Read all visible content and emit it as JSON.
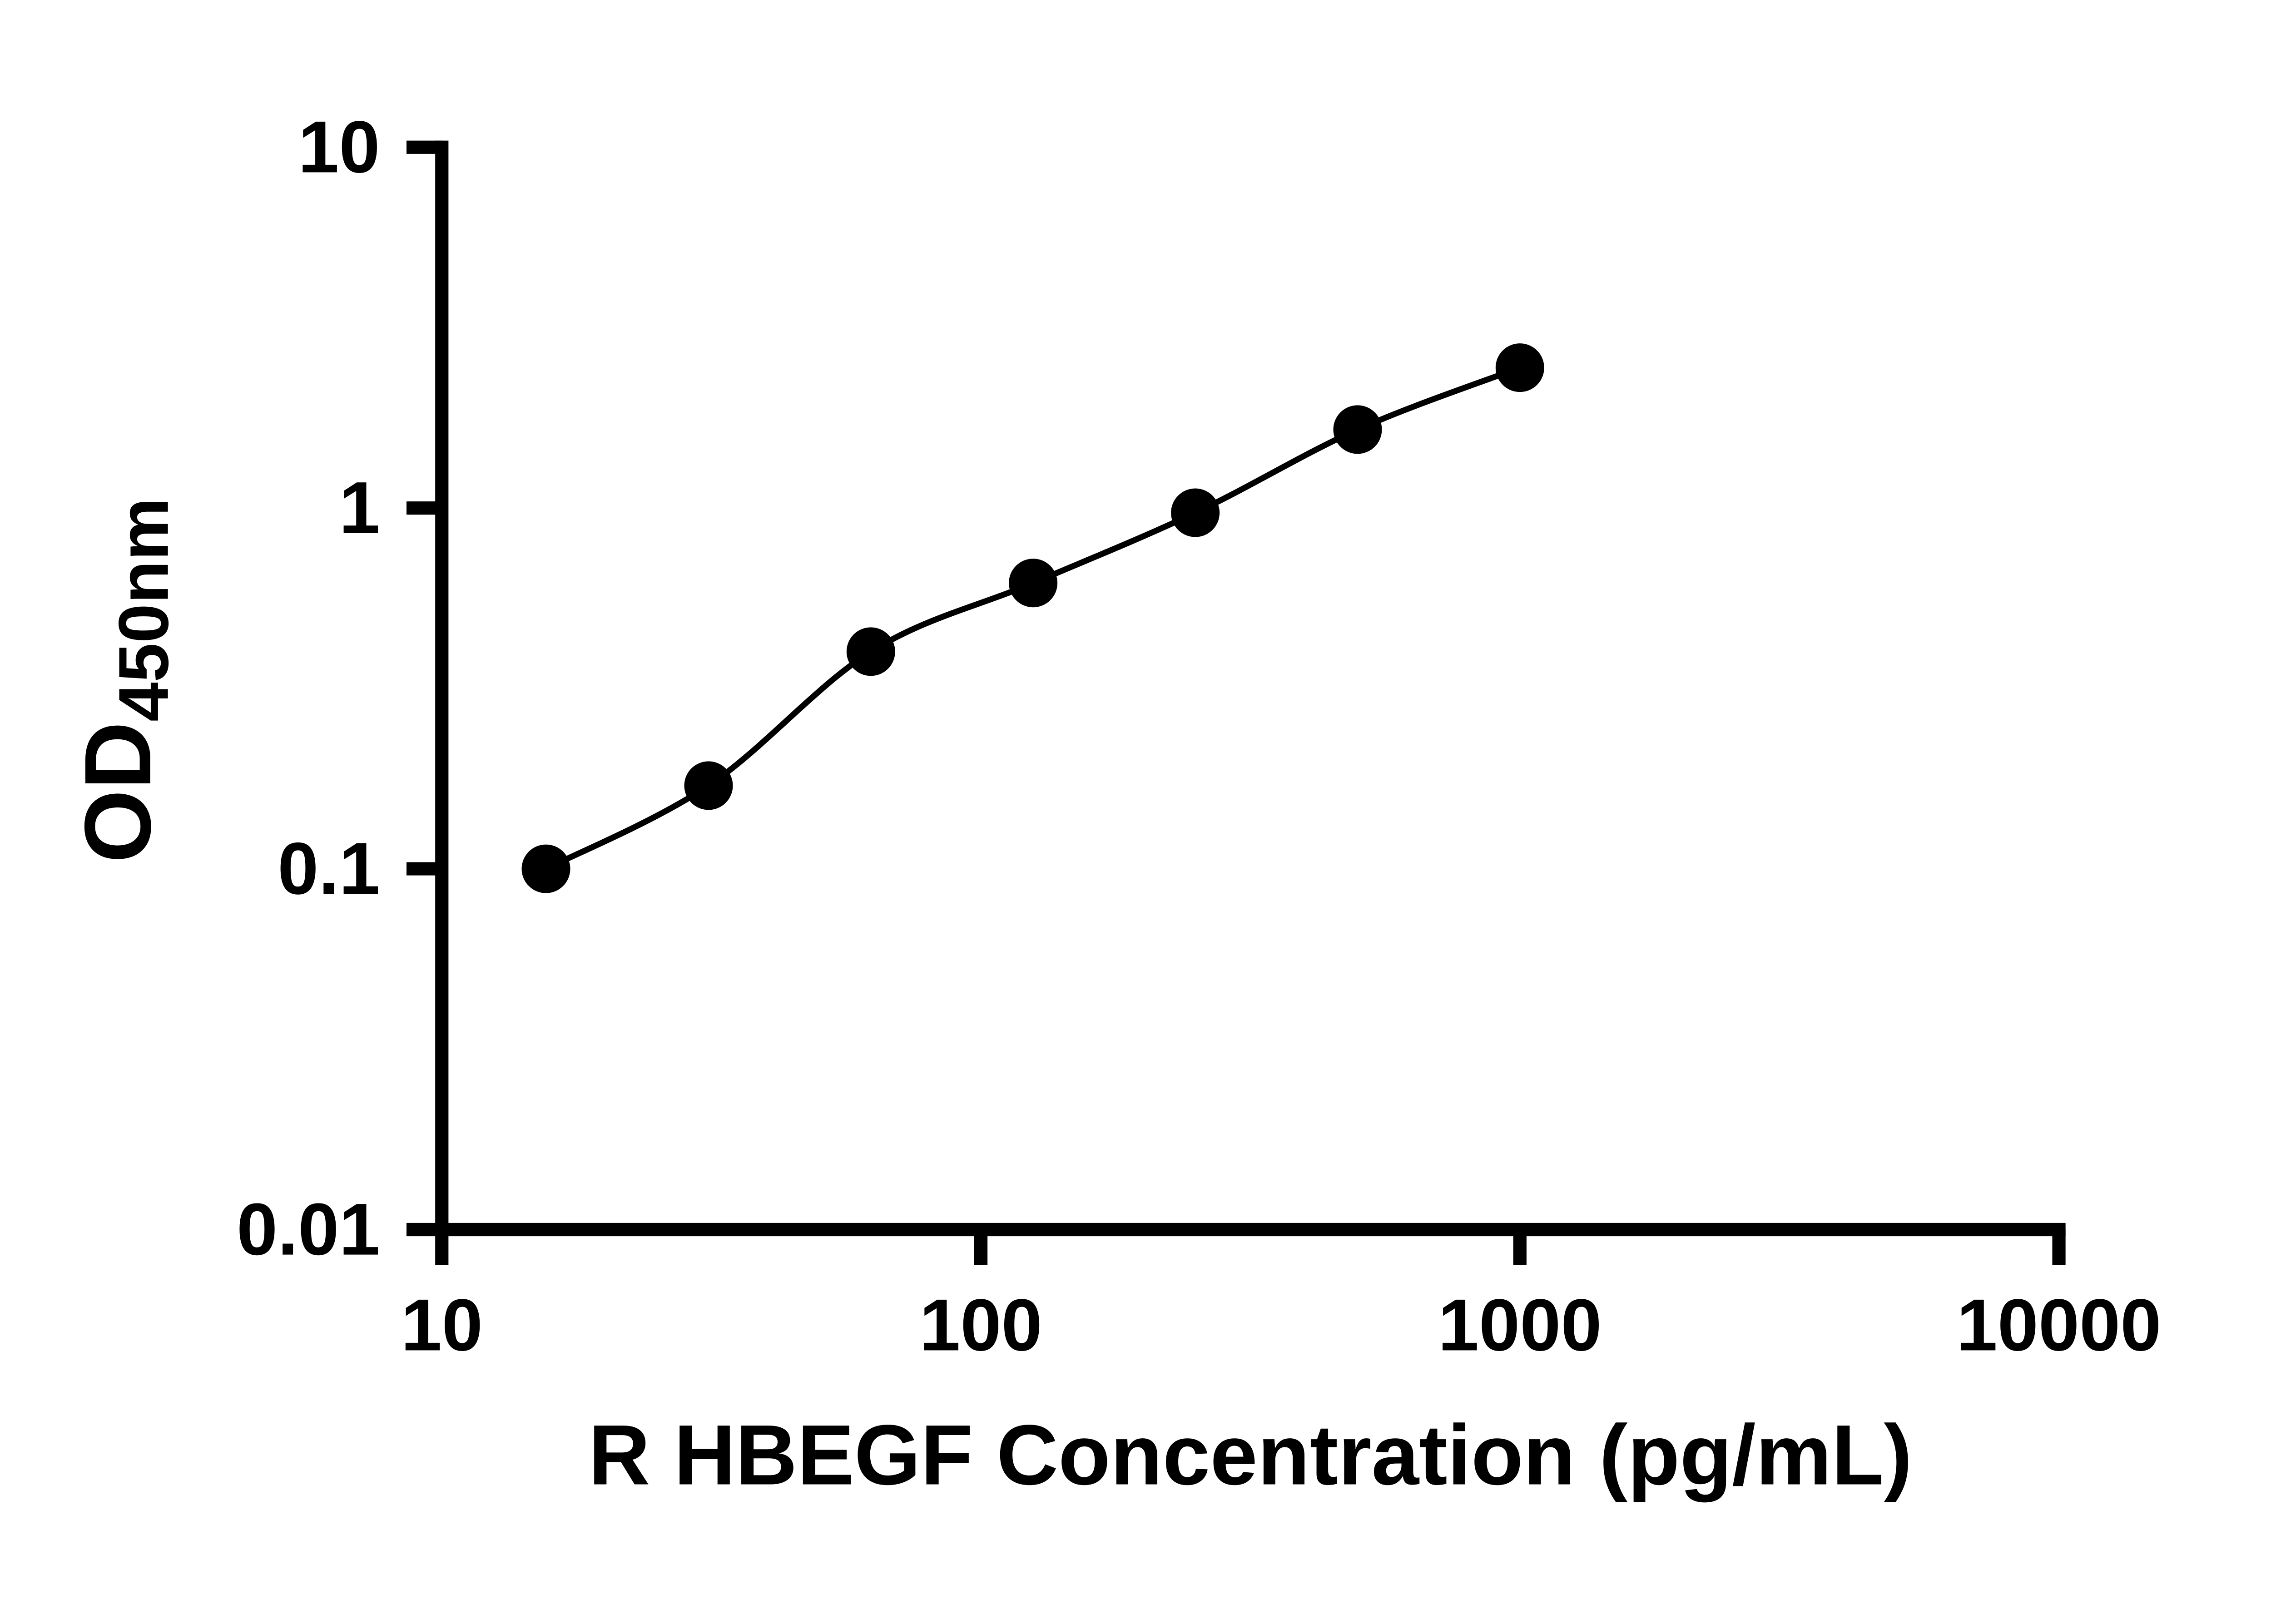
{
  "figure": {
    "background": "#ffffff"
  },
  "chart_data": {
    "type": "scatter",
    "title": "",
    "xlabel": "R HBEGF Concentration (pg/mL)",
    "ylabel_main": "OD",
    "ylabel_sub": "450nm",
    "x_scale": "log10",
    "y_scale": "log10",
    "xlim": [
      10,
      10000
    ],
    "ylim": [
      0.01,
      10
    ],
    "x_ticks": {
      "values": [
        10,
        100,
        1000,
        10000
      ],
      "labels": [
        "10",
        "100",
        "1000",
        "10000"
      ]
    },
    "y_ticks": {
      "values": [
        10,
        1,
        0.1,
        0.01
      ],
      "labels": [
        "10",
        "1",
        "0.1",
        "0.01"
      ]
    },
    "grid": false,
    "legend": false,
    "axis_color": "#000000",
    "marker_color": "#000000",
    "line_color": "#000000",
    "points": [
      {
        "x": 15.6,
        "y": 0.1
      },
      {
        "x": 31.25,
        "y": 0.17
      },
      {
        "x": 62.5,
        "y": 0.4
      },
      {
        "x": 125,
        "y": 0.62
      },
      {
        "x": 250,
        "y": 0.97
      },
      {
        "x": 500,
        "y": 1.65
      },
      {
        "x": 1000,
        "y": 2.45
      }
    ]
  }
}
